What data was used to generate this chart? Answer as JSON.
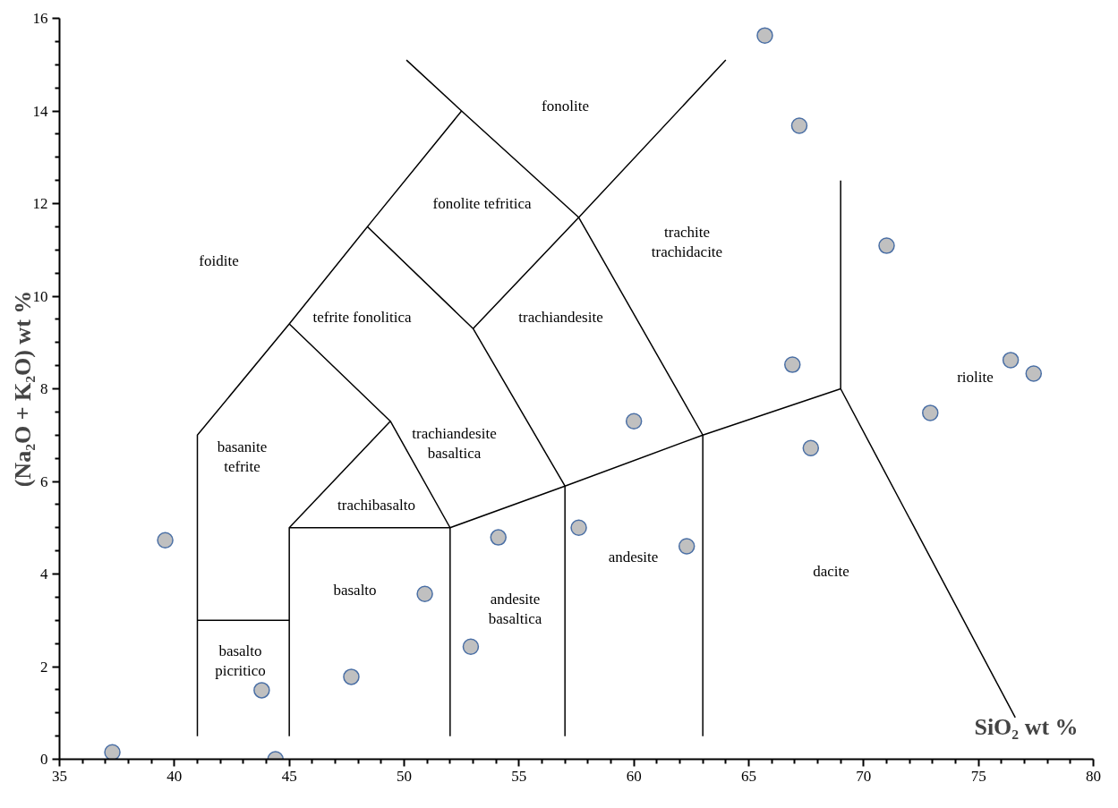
{
  "chart_data": {
    "type": "scatter",
    "xlabel": "SiO₂ wt %",
    "ylabel": "(Na₂O + K₂O) wt %",
    "xlim": [
      35,
      80
    ],
    "xticks": [
      35,
      40,
      45,
      50,
      55,
      60,
      65,
      70,
      75,
      80
    ],
    "ylim": [
      0,
      16
    ],
    "yticks": [
      0,
      2,
      4,
      6,
      8,
      10,
      12,
      14,
      16
    ],
    "grid": false,
    "series": [
      {
        "marker": "circle",
        "color": "#c0c0c0",
        "x": [
          37.3,
          39.6,
          43.8,
          44.4,
          47.7,
          50.9,
          52.9,
          54.1,
          57.6,
          60.0,
          62.3,
          65.7,
          66.9,
          67.2,
          67.7,
          71.0,
          72.9,
          76.4,
          77.4
        ],
        "values": [
          0.15,
          4.73,
          1.49,
          0.0,
          1.78,
          3.57,
          2.43,
          4.79,
          5.0,
          7.3,
          4.6,
          15.63,
          8.52,
          13.68,
          6.72,
          11.09,
          7.48,
          8.62,
          8.33
        ]
      },
      {
        "type": "line",
        "marker": "none",
        "color": "#000000",
        "x": [
          41,
          41,
          45,
          48.4,
          52.5
        ],
        "values": [
          0.5,
          7,
          9.4,
          11.5,
          14
        ]
      },
      {
        "type": "line",
        "marker": "none",
        "color": "#000000",
        "x": [
          50.1,
          52.5,
          57.6,
          63
        ],
        "values": [
          15.1,
          14,
          11.7,
          7
        ]
      },
      {
        "type": "line",
        "marker": "none",
        "color": "#000000",
        "x": [
          53,
          57.6,
          64.0
        ],
        "values": [
          9.3,
          11.7,
          15.1
        ]
      },
      {
        "type": "line",
        "marker": "none",
        "color": "#000000",
        "x": [
          45,
          49.4,
          52,
          57,
          63,
          69,
          76.6
        ],
        "values": [
          9.4,
          7.3,
          5,
          5.9,
          7,
          8,
          0.9
        ]
      },
      {
        "type": "line",
        "marker": "none",
        "color": "#000000",
        "x": [
          45,
          49.4
        ],
        "values": [
          5,
          7.3
        ]
      },
      {
        "type": "line",
        "marker": "none",
        "color": "#000000",
        "x": [
          48.4,
          53,
          57,
          57
        ],
        "values": [
          11.5,
          9.3,
          5.9,
          0.5
        ]
      },
      {
        "type": "line",
        "marker": "none",
        "color": "#000000",
        "x": [
          45,
          45,
          52,
          52
        ],
        "values": [
          0.5,
          5,
          5,
          0.5
        ]
      },
      {
        "type": "line",
        "marker": "none",
        "color": "#000000",
        "x": [
          41,
          45
        ],
        "values": [
          3,
          3
        ]
      },
      {
        "type": "line",
        "marker": "none",
        "color": "#000000",
        "x": [
          63,
          63
        ],
        "values": [
          7,
          0.5
        ]
      },
      {
        "type": "line",
        "marker": "none",
        "color": "#000000",
        "x": [
          69,
          69
        ],
        "values": [
          8,
          12.5
        ]
      }
    ],
    "annotations": [
      "foidite",
      "fonolite",
      "fonolite tefritica",
      "tefrite fonolitica",
      "trachiandesite",
      "trachite\ntrachidacite",
      "basanite\ntefrite",
      "trachiandesite\nbasaltica",
      "trachibasalto",
      "basalto",
      "basalto\npicritico",
      "andesite\nbasaltica",
      "andesite",
      "dacite",
      "riolite"
    ]
  }
}
